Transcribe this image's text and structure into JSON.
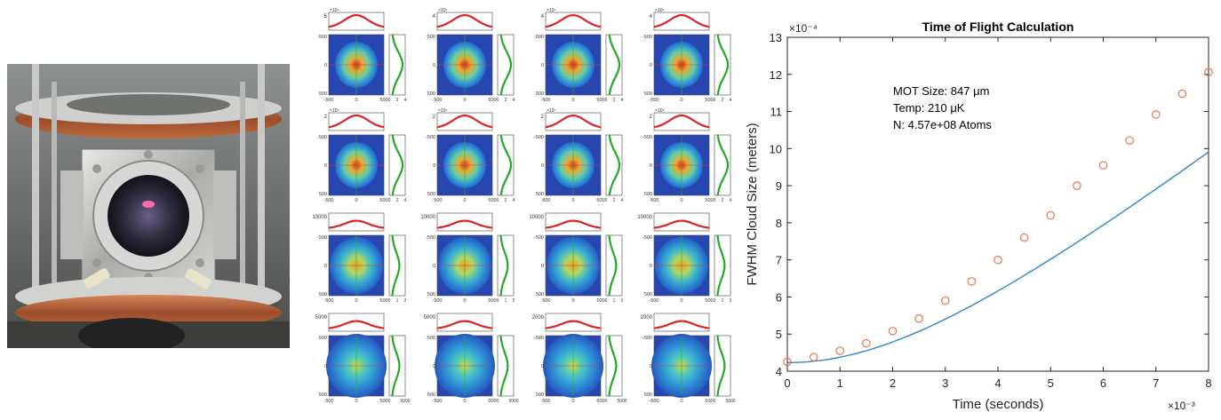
{
  "photo": {
    "description_icon": "mot-vacuum-chamber-photo"
  },
  "grid": {
    "rows": 4,
    "cols": 4,
    "top_ylabels": [
      [
        "5",
        "×10⁴",
        "4",
        "×10⁴",
        "4",
        "×10⁴",
        "4",
        "×10⁴"
      ],
      [
        "2",
        "×10⁴",
        "2",
        "×10⁴",
        "2",
        "×10⁴",
        "2",
        "×10⁴"
      ],
      [
        "10000",
        "",
        "10000",
        "",
        "10000",
        "",
        "10000",
        ""
      ],
      [
        "5000",
        "",
        "5000",
        "",
        "2000",
        "",
        "2000",
        ""
      ]
    ],
    "x_ticks": [
      "-500",
      "0",
      "500"
    ],
    "y_ticks": [
      "-500",
      "0",
      "500"
    ],
    "side_ticks": [
      [
        "0",
        "2",
        "4"
      ],
      [
        "0",
        "2",
        "4"
      ],
      [
        "0",
        "1",
        "2"
      ],
      [
        "0",
        "5000"
      ]
    ],
    "bottom_side_ticks": [
      "0",
      "5000",
      "0",
      "5000",
      "0",
      "5000",
      "0",
      "4000"
    ]
  },
  "chart_data": {
    "type": "scatter",
    "title": "Time of Flight Calculation",
    "xlabel": "Time (seconds)",
    "ylabel": "FWHM Cloud Size (meters)",
    "x_exponent": "×10⁻³",
    "y_exponent": "×10⁻⁴",
    "xlim": [
      0,
      8
    ],
    "ylim": [
      4,
      13
    ],
    "x_ticks": [
      0,
      1,
      2,
      3,
      4,
      5,
      6,
      7,
      8
    ],
    "y_ticks": [
      4,
      5,
      6,
      7,
      8,
      9,
      10,
      11,
      12,
      13
    ],
    "x_tick_labels": [
      "0",
      "1",
      "2",
      "3",
      "4",
      "5",
      "6",
      "7",
      "8"
    ],
    "y_tick_labels": [
      "4",
      "5",
      "6",
      "7",
      "8",
      "9",
      "10",
      "11",
      "12",
      "13"
    ],
    "annotations": [
      "MOT Size: 847 μm",
      "Temp: 210 μK",
      "N: 4.57e+08 Atoms"
    ],
    "series": [
      {
        "kind": "points",
        "color": "#e8744a",
        "x": [
          0,
          0.5,
          1,
          1.5,
          2,
          2.5,
          3,
          3.5,
          4,
          4.5,
          5,
          5.5,
          6,
          6.5,
          7,
          7.5,
          8
        ],
        "y": [
          4.25,
          4.38,
          4.55,
          4.75,
          5.08,
          5.42,
          5.9,
          6.42,
          7.0,
          7.6,
          8.2,
          9.0,
          9.55,
          10.22,
          10.92,
          11.48,
          12.06
        ]
      },
      {
        "kind": "fit",
        "color": "#2f86c7",
        "sigma0": 4.23,
        "v": 1.12
      }
    ],
    "grid": false
  }
}
